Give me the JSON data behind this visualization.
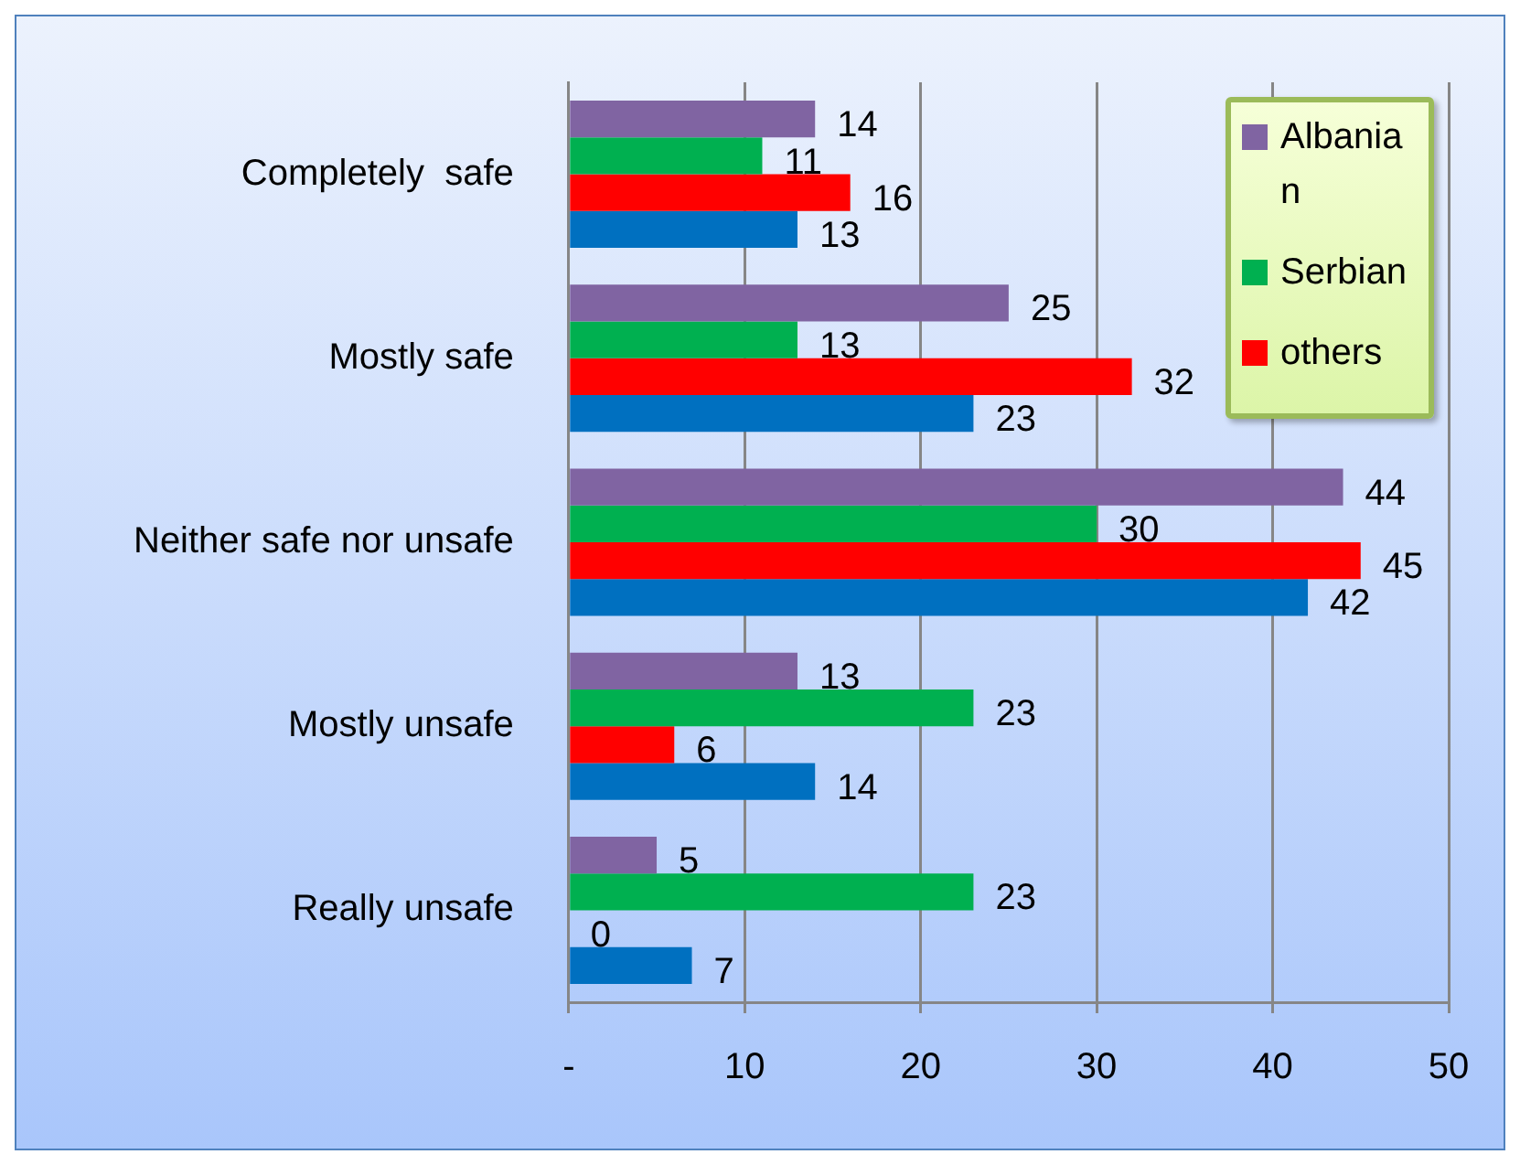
{
  "chart_data": {
    "type": "bar",
    "orientation": "horizontal",
    "categories": [
      "Completely  safe",
      "Mostly safe",
      "Neither safe nor unsafe",
      "Mostly unsafe",
      "Really unsafe"
    ],
    "series": [
      {
        "name": "Albanian",
        "color": "#8064a2",
        "values": [
          14,
          25,
          44,
          13,
          5
        ]
      },
      {
        "name": "Serbian",
        "color": "#00b050",
        "values": [
          11,
          13,
          30,
          23,
          23
        ]
      },
      {
        "name": "others",
        "color": "#ff0000",
        "values": [
          16,
          32,
          45,
          6,
          0
        ]
      },
      {
        "color": "#0070c0",
        "values": [
          13,
          23,
          42,
          14,
          7
        ]
      }
    ],
    "xlim": [
      0,
      50
    ],
    "xticks": [
      {
        "value": 0,
        "label": "-"
      },
      10,
      20,
      30,
      40,
      50
    ],
    "grid": "x",
    "legend": "top right",
    "data_labels": true
  }
}
